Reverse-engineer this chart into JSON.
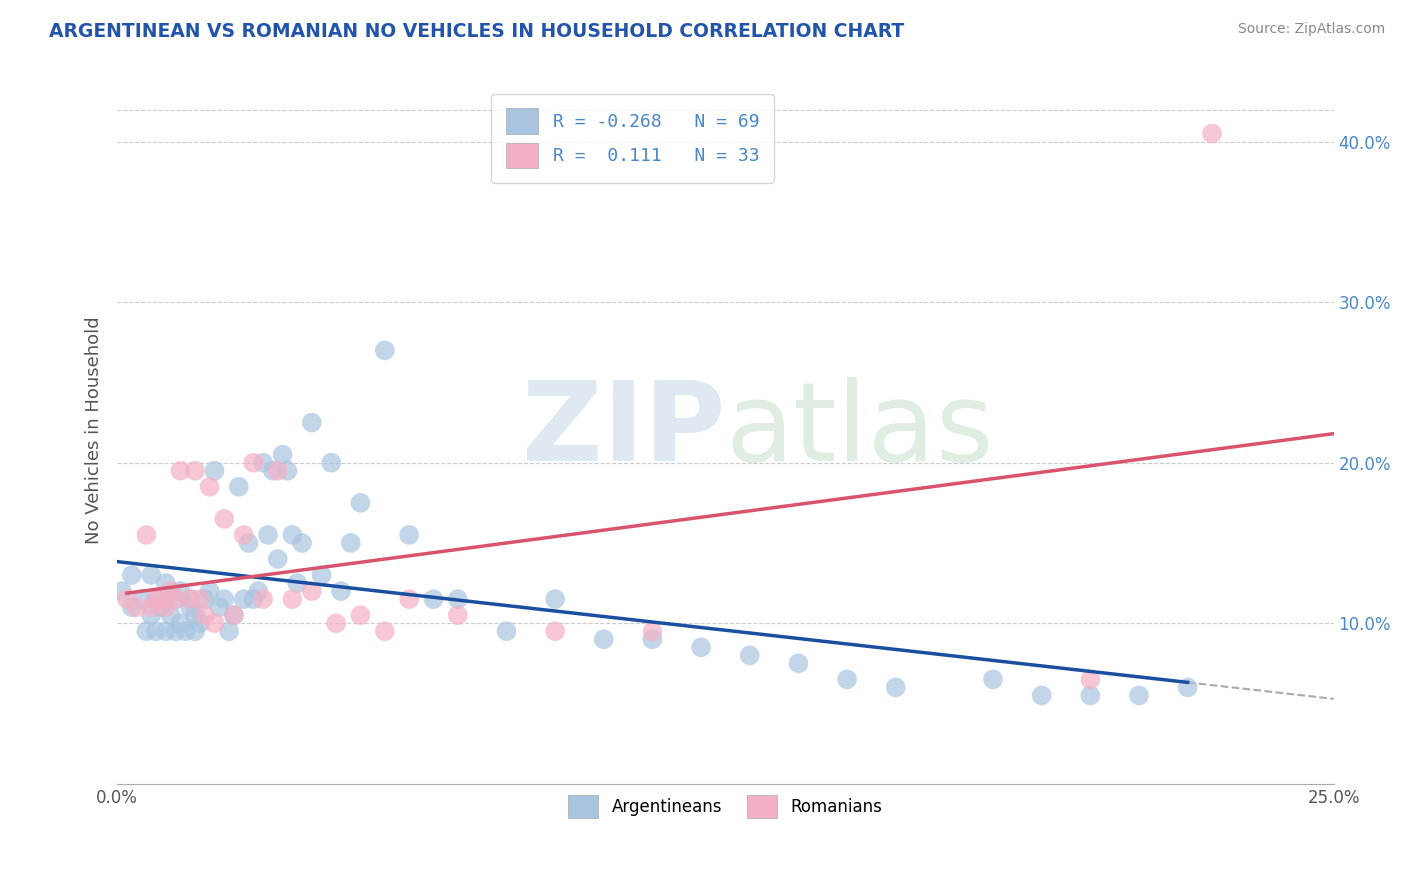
{
  "title": "ARGENTINEAN VS ROMANIAN NO VEHICLES IN HOUSEHOLD CORRELATION CHART",
  "source": "Source: ZipAtlas.com",
  "ylabel": "No Vehicles in Household",
  "xlim": [
    0.0,
    0.25
  ],
  "ylim": [
    0.0,
    0.44
  ],
  "xticks": [
    0.0,
    0.25
  ],
  "xticklabels": [
    "0.0%",
    "25.0%"
  ],
  "yticks": [
    0.1,
    0.2,
    0.3,
    0.4
  ],
  "yticklabels": [
    "10.0%",
    "20.0%",
    "30.0%",
    "40.0%"
  ],
  "legend_label1": "R = -0.268   N = 69",
  "legend_label2": "R =  0.111   N = 33",
  "argentinean_color": "#a8c4e0",
  "romanian_color": "#f4b0c4",
  "line_arg_color": "#1a4fa0",
  "line_rom_color": "#d9536e",
  "background_color": "#ffffff",
  "grid_color": "#cccccc",
  "title_color": "#2255aa",
  "source_color": "#888888",
  "argentineans_x": [
    0.001,
    0.003,
    0.003,
    0.005,
    0.006,
    0.007,
    0.007,
    0.008,
    0.008,
    0.009,
    0.01,
    0.01,
    0.01,
    0.011,
    0.012,
    0.012,
    0.013,
    0.013,
    0.014,
    0.015,
    0.015,
    0.016,
    0.016,
    0.017,
    0.018,
    0.019,
    0.02,
    0.021,
    0.022,
    0.023,
    0.024,
    0.025,
    0.026,
    0.027,
    0.028,
    0.029,
    0.03,
    0.031,
    0.032,
    0.033,
    0.034,
    0.035,
    0.036,
    0.037,
    0.038,
    0.04,
    0.042,
    0.044,
    0.046,
    0.048,
    0.05,
    0.055,
    0.06,
    0.065,
    0.07,
    0.08,
    0.09,
    0.1,
    0.11,
    0.12,
    0.13,
    0.14,
    0.15,
    0.16,
    0.18,
    0.19,
    0.2,
    0.21,
    0.22
  ],
  "argentineans_y": [
    0.12,
    0.11,
    0.13,
    0.115,
    0.095,
    0.105,
    0.13,
    0.115,
    0.095,
    0.11,
    0.115,
    0.125,
    0.095,
    0.105,
    0.115,
    0.095,
    0.1,
    0.12,
    0.095,
    0.11,
    0.115,
    0.105,
    0.095,
    0.1,
    0.115,
    0.12,
    0.195,
    0.11,
    0.115,
    0.095,
    0.105,
    0.185,
    0.115,
    0.15,
    0.115,
    0.12,
    0.2,
    0.155,
    0.195,
    0.14,
    0.205,
    0.195,
    0.155,
    0.125,
    0.15,
    0.225,
    0.13,
    0.2,
    0.12,
    0.15,
    0.175,
    0.27,
    0.155,
    0.115,
    0.115,
    0.095,
    0.115,
    0.09,
    0.09,
    0.085,
    0.08,
    0.075,
    0.065,
    0.06,
    0.065,
    0.055,
    0.055,
    0.055,
    0.06
  ],
  "romanians_x": [
    0.002,
    0.004,
    0.006,
    0.007,
    0.008,
    0.009,
    0.01,
    0.011,
    0.012,
    0.013,
    0.015,
    0.016,
    0.017,
    0.018,
    0.019,
    0.02,
    0.022,
    0.024,
    0.026,
    0.028,
    0.03,
    0.033,
    0.036,
    0.04,
    0.045,
    0.05,
    0.055,
    0.06,
    0.07,
    0.09,
    0.11,
    0.2,
    0.225
  ],
  "romanians_y": [
    0.115,
    0.11,
    0.155,
    0.11,
    0.115,
    0.115,
    0.11,
    0.12,
    0.115,
    0.195,
    0.115,
    0.195,
    0.115,
    0.105,
    0.185,
    0.1,
    0.165,
    0.105,
    0.155,
    0.2,
    0.115,
    0.195,
    0.115,
    0.12,
    0.1,
    0.105,
    0.095,
    0.115,
    0.105,
    0.095,
    0.095,
    0.065,
    0.405
  ]
}
